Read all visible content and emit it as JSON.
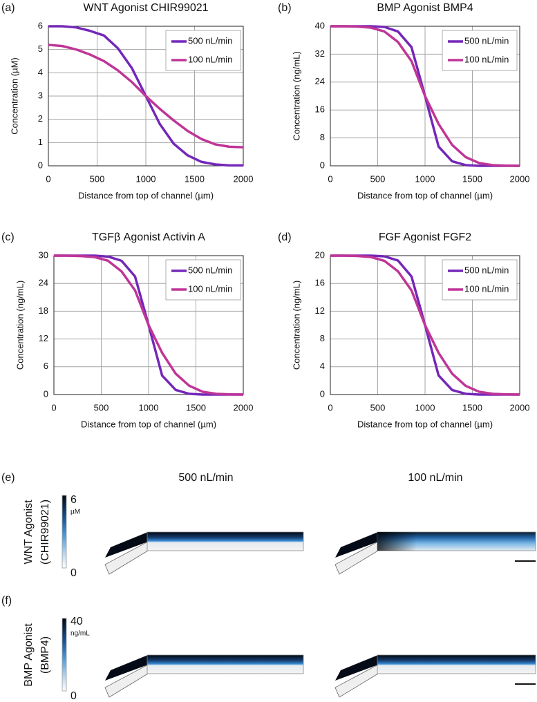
{
  "chart_data": [
    {
      "type": "line",
      "panel_label": "(a)",
      "title": "WNT Agonist CHIR99021",
      "x_label": "Distance from top of channel (µm)",
      "y_label": "Concentration (µM)",
      "x": [
        0,
        143,
        286,
        429,
        571,
        714,
        857,
        1000,
        1143,
        1286,
        1429,
        1571,
        1714,
        1857,
        2000
      ],
      "xlim": [
        0,
        2000
      ],
      "xticks": [
        0,
        500,
        1000,
        1500,
        2000
      ],
      "ylim": [
        0,
        6
      ],
      "yticks": [
        0,
        1,
        2,
        3,
        4,
        5,
        6
      ],
      "grid": true,
      "legend": "upper right",
      "series": [
        {
          "name": "500 nL/min",
          "color": "#7427b8",
          "values": [
            6.0,
            6.0,
            5.95,
            5.8,
            5.6,
            5.05,
            4.2,
            3.0,
            1.8,
            0.95,
            0.45,
            0.17,
            0.06,
            0.02,
            0.02
          ]
        },
        {
          "name": "100 nL/min",
          "color": "#bf3597",
          "values": [
            5.2,
            5.15,
            5.0,
            4.78,
            4.5,
            4.1,
            3.6,
            3.0,
            2.45,
            1.95,
            1.5,
            1.15,
            0.92,
            0.82,
            0.8
          ]
        }
      ]
    },
    {
      "type": "line",
      "panel_label": "(b)",
      "title": "BMP Agonist BMP4",
      "x_label": "Distance from top of channel (µm)",
      "y_label": "Concentration (ng/mL)",
      "x": [
        0,
        143,
        286,
        429,
        571,
        714,
        857,
        1000,
        1143,
        1286,
        1429,
        1571,
        1714,
        1857,
        2000
      ],
      "xlim": [
        0,
        2000
      ],
      "xticks": [
        0,
        500,
        1000,
        1500,
        2000
      ],
      "ylim": [
        0,
        40
      ],
      "yticks": [
        0,
        8,
        16,
        24,
        32,
        40
      ],
      "grid": true,
      "legend": "upper right",
      "series": [
        {
          "name": "500 nL/min",
          "color": "#7427b8",
          "values": [
            40,
            40,
            40,
            40,
            39.8,
            38.5,
            34,
            20,
            5.5,
            1.3,
            0.2,
            0,
            0,
            0,
            0
          ]
        },
        {
          "name": "100 nL/min",
          "color": "#bf3597",
          "values": [
            40,
            40,
            39.9,
            39.6,
            38.5,
            35.5,
            30,
            20,
            12,
            6,
            2.5,
            0.8,
            0.2,
            0.05,
            0
          ]
        }
      ]
    },
    {
      "type": "line",
      "panel_label": "(c)",
      "title": "TGFβ Agonist Activin A",
      "x_label": "Distance from top of channel (µm)",
      "y_label": "Concentration (ng/mL)",
      "x": [
        0,
        143,
        286,
        429,
        571,
        714,
        857,
        1000,
        1143,
        1286,
        1429,
        1571,
        1714,
        1857,
        2000
      ],
      "xlim": [
        0,
        2000
      ],
      "xticks": [
        0,
        500,
        1000,
        1500,
        2000
      ],
      "ylim": [
        0,
        30
      ],
      "yticks": [
        0,
        6,
        12,
        18,
        24,
        30
      ],
      "grid": true,
      "legend": "upper right",
      "series": [
        {
          "name": "500 nL/min",
          "color": "#7427b8",
          "values": [
            30,
            30,
            30,
            30,
            29.8,
            28.9,
            25.5,
            15,
            4.1,
            1,
            0.15,
            0,
            0,
            0,
            0
          ]
        },
        {
          "name": "100 nL/min",
          "color": "#bf3597",
          "values": [
            30,
            30,
            29.9,
            29.7,
            28.9,
            26.6,
            22.5,
            15,
            9,
            4.5,
            1.9,
            0.6,
            0.15,
            0.04,
            0
          ]
        }
      ]
    },
    {
      "type": "line",
      "panel_label": "(d)",
      "title": "FGF Agonist FGF2",
      "x_label": "Distance from top of channel (µm)",
      "y_label": "Concentration (ng/mL)",
      "x": [
        0,
        143,
        286,
        429,
        571,
        714,
        857,
        1000,
        1143,
        1286,
        1429,
        1571,
        1714,
        1857,
        2000
      ],
      "xlim": [
        0,
        2000
      ],
      "xticks": [
        0,
        500,
        1000,
        1500,
        2000
      ],
      "ylim": [
        0,
        20
      ],
      "yticks": [
        0,
        4,
        8,
        12,
        16,
        20
      ],
      "grid": true,
      "legend": "upper right",
      "series": [
        {
          "name": "500 nL/min",
          "color": "#7427b8",
          "values": [
            20,
            20,
            20,
            20,
            19.9,
            19.3,
            17,
            10,
            2.75,
            0.65,
            0.1,
            0,
            0,
            0,
            0
          ]
        },
        {
          "name": "100 nL/min",
          "color": "#bf3597",
          "values": [
            20,
            20,
            19.95,
            19.8,
            19.25,
            17.75,
            15,
            10,
            6,
            3,
            1.25,
            0.4,
            0.1,
            0.03,
            0
          ]
        }
      ]
    }
  ],
  "simulation": {
    "columns": [
      "500 nL/min",
      "100 nL/min"
    ],
    "rows": [
      {
        "panel_label": "(e)",
        "label_lines": [
          "WNT Agonist",
          "(CHIR99021)"
        ],
        "colorbar": {
          "max": 6,
          "unit": "µM",
          "min": 0
        }
      },
      {
        "panel_label": "(f)",
        "label_lines": [
          "BMP Agonist",
          "(BMP4)"
        ],
        "colorbar": {
          "max": 40,
          "unit": "ng/mL",
          "min": 0
        }
      }
    ]
  }
}
